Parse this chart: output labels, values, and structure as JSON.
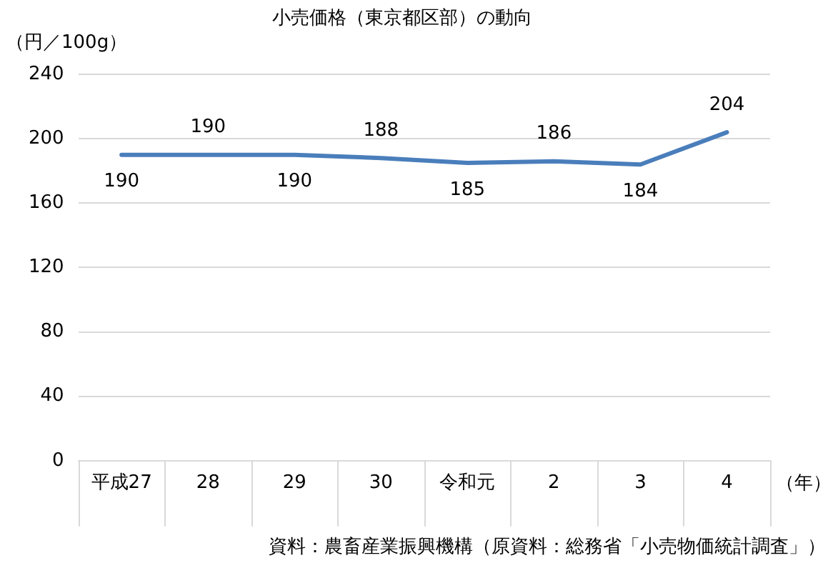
{
  "chart_data": {
    "type": "line",
    "title": "小売価格（東京都区部）の動向",
    "ylabel": "（円／100g）",
    "xlabel": "（年）",
    "categories": [
      "平成27",
      "28",
      "29",
      "30",
      "令和元",
      "2",
      "3",
      "4"
    ],
    "series": [
      {
        "color": "#4a7ebb",
        "values": [
          190,
          190,
          190,
          188,
          185,
          186,
          184,
          204
        ]
      }
    ],
    "ylim": [
      0,
      240
    ],
    "yticks": [
      0,
      40,
      80,
      120,
      160,
      200,
      240
    ],
    "grid": "y",
    "legend": false,
    "marker": "none",
    "line_style": "solid",
    "data_labels": true,
    "annotations": [
      "資料：農畜産業振興機構（原資料：総務省「小売物価統計調査」）"
    ]
  }
}
